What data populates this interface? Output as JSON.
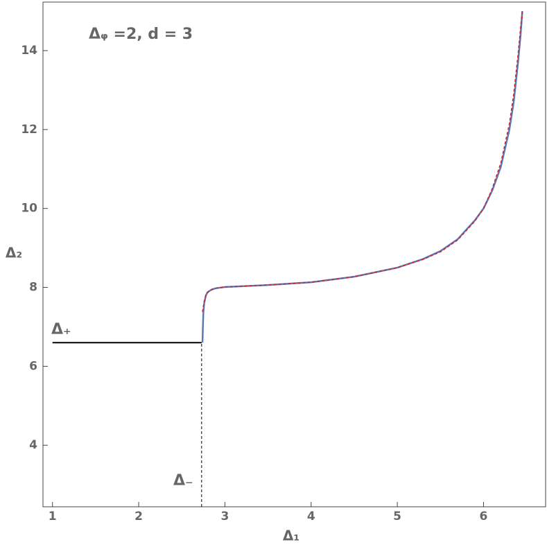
{
  "chart_data": {
    "type": "line",
    "xlabel": "Δ₁",
    "ylabel": "Δ₂",
    "xlim": [
      0.89,
      6.72
    ],
    "ylim": [
      2.44,
      15.23
    ],
    "xticks": [
      1,
      2,
      3,
      4,
      5,
      6
    ],
    "yticks": [
      4,
      6,
      8,
      10,
      12,
      14
    ],
    "annotations": [
      "Δᵩ =2, d = 3",
      "Δ₊",
      "Δ₋"
    ],
    "series": [
      {
        "color": "#5b78b8",
        "dash": false,
        "width": 2.5,
        "x": [
          2.74,
          2.745,
          2.75,
          2.76,
          2.78,
          2.8,
          2.85,
          2.9,
          3,
          3.2,
          3.5,
          4,
          4.5,
          5,
          5.3,
          5.5,
          5.7,
          5.9,
          6,
          6.1,
          6.2,
          6.3,
          6.35,
          6.4,
          6.43,
          6.45
        ],
        "values": [
          6.6,
          7.0,
          7.35,
          7.6,
          7.8,
          7.88,
          7.95,
          7.98,
          8.01,
          8.03,
          8.06,
          8.13,
          8.27,
          8.5,
          8.72,
          8.92,
          9.22,
          9.7,
          10.0,
          10.45,
          11.05,
          12.0,
          12.7,
          13.7,
          14.4,
          15.0
        ]
      },
      {
        "color": "#d62020",
        "dash": true,
        "width": 1.5,
        "x": [
          2.74,
          2.76,
          2.78,
          2.8,
          2.85,
          2.9,
          3,
          3.2,
          3.5,
          4,
          4.5,
          5,
          5.3,
          5.5,
          5.7,
          5.9,
          6,
          6.1,
          6.2,
          6.3,
          6.35,
          6.4,
          6.43,
          6.45
        ],
        "values": [
          7.38,
          7.65,
          7.8,
          7.87,
          7.94,
          7.98,
          8.01,
          8.03,
          8.06,
          8.13,
          8.27,
          8.5,
          8.71,
          8.9,
          9.2,
          9.68,
          10.0,
          10.5,
          11.15,
          12.15,
          12.9,
          13.9,
          14.6,
          15.0
        ]
      },
      {
        "color": "#000000",
        "dash": false,
        "width": 2,
        "x": [
          1,
          2.73
        ],
        "values": [
          6.6,
          6.6
        ]
      },
      {
        "color": "#000000",
        "dash": true,
        "width": 1,
        "x": [
          2.73,
          2.73
        ],
        "values": [
          2.44,
          6.6
        ]
      }
    ]
  }
}
